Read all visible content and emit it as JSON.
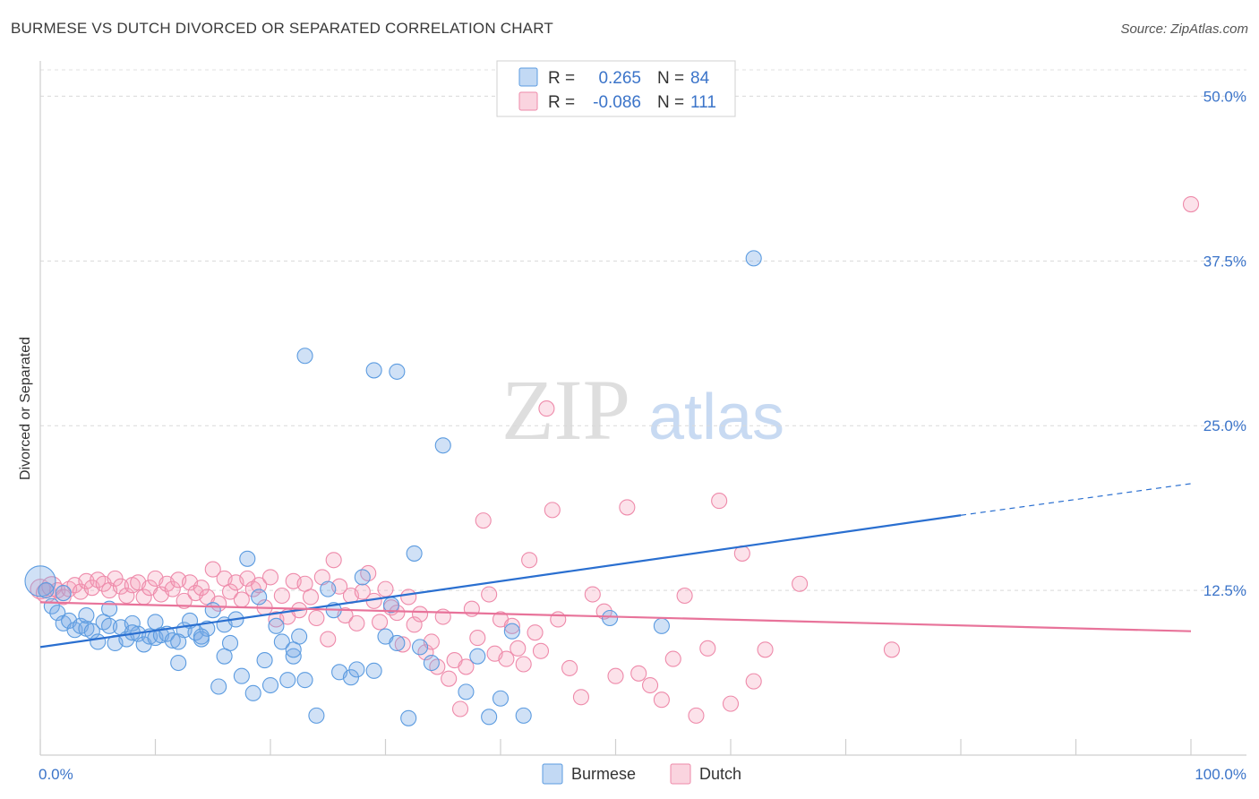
{
  "title": "BURMESE VS DUTCH DIVORCED OR SEPARATED CORRELATION CHART",
  "source": "Source: ZipAtlas.com",
  "watermark": {
    "zip": "ZIP",
    "atlas": "atlas"
  },
  "colors": {
    "burmese": "#5b9be0",
    "burmese_fill": "rgba(120,170,230,0.35)",
    "burmese_line": "#2a6fd0",
    "dutch": "#ee8aaa",
    "dutch_fill": "rgba(245,160,185,0.30)",
    "dutch_line": "#e8739a",
    "axis_label": "#3b74c9"
  },
  "legend": {
    "rows": [
      {
        "r_label": "R =",
        "r_value": "0.265",
        "n_label": "N =",
        "n_value": "84"
      },
      {
        "r_label": "R =",
        "r_value": "-0.086",
        "n_label": "N =",
        "n_value": "111"
      }
    ],
    "bottom": [
      "Burmese",
      "Dutch"
    ]
  },
  "chart_data": {
    "type": "scatter",
    "title": "BURMESE VS DUTCH DIVORCED OR SEPARATED CORRELATION CHART",
    "xlabel": "",
    "ylabel": "Divorced or Separated",
    "xlim": [
      0,
      100
    ],
    "ylim": [
      0,
      52
    ],
    "x_tick_labels": [
      "0.0%",
      "100.0%"
    ],
    "y_tick_labels": [
      "12.5%",
      "25.0%",
      "37.5%",
      "50.0%"
    ],
    "y_ticks": [
      12.5,
      25.0,
      37.5,
      50.0
    ],
    "grid": true,
    "series": [
      {
        "name": "Burmese",
        "r": 0.265,
        "n": 84,
        "trend": {
          "x0": 0,
          "y0": 8.2,
          "x1": 80,
          "y1": 18.2,
          "dashed_to_x": 100,
          "dashed_to_y": 20.6
        },
        "points": [
          [
            0,
            13.2
          ],
          [
            0.5,
            12.5
          ],
          [
            1,
            11.3
          ],
          [
            1.5,
            10.8
          ],
          [
            2,
            10.0
          ],
          [
            2.5,
            10.2
          ],
          [
            3,
            9.5
          ],
          [
            3.5,
            9.8
          ],
          [
            4,
            9.6
          ],
          [
            4.5,
            9.4
          ],
          [
            5,
            8.6
          ],
          [
            5.5,
            10.1
          ],
          [
            6,
            9.8
          ],
          [
            6.5,
            8.5
          ],
          [
            7,
            9.7
          ],
          [
            7.5,
            8.8
          ],
          [
            8,
            10.0
          ],
          [
            8.5,
            9.2
          ],
          [
            9,
            8.4
          ],
          [
            9.5,
            9.0
          ],
          [
            10,
            8.9
          ],
          [
            10.5,
            9.1
          ],
          [
            11,
            9.2
          ],
          [
            11.5,
            8.7
          ],
          [
            12,
            7.0
          ],
          [
            12.5,
            9.5
          ],
          [
            13,
            10.2
          ],
          [
            13.5,
            9.3
          ],
          [
            14,
            8.8
          ],
          [
            14.5,
            9.6
          ],
          [
            15,
            11.0
          ],
          [
            15.5,
            5.2
          ],
          [
            16,
            9.9
          ],
          [
            16.5,
            8.5
          ],
          [
            17,
            10.3
          ],
          [
            17.5,
            6.0
          ],
          [
            18,
            14.9
          ],
          [
            18.5,
            4.7
          ],
          [
            19,
            12.0
          ],
          [
            19.5,
            7.2
          ],
          [
            20,
            5.3
          ],
          [
            20.5,
            9.8
          ],
          [
            21,
            8.6
          ],
          [
            21.5,
            5.7
          ],
          [
            22,
            7.5
          ],
          [
            22.5,
            9.0
          ],
          [
            23,
            5.7
          ],
          [
            24,
            3.0
          ],
          [
            25,
            12.6
          ],
          [
            25.5,
            11.0
          ],
          [
            26,
            6.3
          ],
          [
            27,
            5.9
          ],
          [
            27.5,
            6.5
          ],
          [
            28,
            13.5
          ],
          [
            29,
            6.4
          ],
          [
            30,
            9.0
          ],
          [
            30.5,
            11.4
          ],
          [
            31,
            8.5
          ],
          [
            32,
            2.8
          ],
          [
            32.5,
            15.3
          ],
          [
            33,
            8.2
          ],
          [
            34,
            7.0
          ],
          [
            35,
            23.5
          ],
          [
            37,
            4.8
          ],
          [
            38,
            7.5
          ],
          [
            39,
            2.9
          ],
          [
            40,
            4.3
          ],
          [
            41,
            9.4
          ],
          [
            42,
            3.0
          ],
          [
            49.5,
            10.4
          ],
          [
            54,
            9.8
          ],
          [
            62,
            37.7
          ],
          [
            23,
            30.3
          ],
          [
            29,
            29.2
          ],
          [
            31,
            29.1
          ],
          [
            2,
            12.3
          ],
          [
            4,
            10.6
          ],
          [
            6,
            11.1
          ],
          [
            8,
            9.3
          ],
          [
            10,
            10.1
          ],
          [
            12,
            8.6
          ],
          [
            14,
            9.0
          ],
          [
            16,
            7.5
          ],
          [
            22,
            8.0
          ]
        ]
      },
      {
        "name": "Dutch",
        "r": -0.086,
        "n": 111,
        "trend": {
          "x0": 0,
          "y0": 11.6,
          "x1": 100,
          "y1": 9.4
        },
        "points": [
          [
            0,
            12.6
          ],
          [
            0.5,
            12.3
          ],
          [
            1,
            12.8
          ],
          [
            1.5,
            12.5
          ],
          [
            2,
            12.0
          ],
          [
            2.5,
            12.6
          ],
          [
            3,
            12.9
          ],
          [
            3.5,
            12.4
          ],
          [
            4,
            13.2
          ],
          [
            4.5,
            12.7
          ],
          [
            5,
            13.3
          ],
          [
            5.5,
            13.0
          ],
          [
            6,
            12.5
          ],
          [
            6.5,
            13.4
          ],
          [
            7,
            12.8
          ],
          [
            7.5,
            12.1
          ],
          [
            8,
            12.9
          ],
          [
            8.5,
            13.1
          ],
          [
            9,
            12.0
          ],
          [
            9.5,
            12.7
          ],
          [
            10,
            13.4
          ],
          [
            10.5,
            12.2
          ],
          [
            11,
            13.0
          ],
          [
            11.5,
            12.6
          ],
          [
            12,
            13.3
          ],
          [
            12.5,
            11.7
          ],
          [
            13,
            13.1
          ],
          [
            13.5,
            12.3
          ],
          [
            14,
            12.7
          ],
          [
            14.5,
            12.0
          ],
          [
            15,
            14.1
          ],
          [
            15.5,
            11.5
          ],
          [
            16,
            13.4
          ],
          [
            16.5,
            12.4
          ],
          [
            17,
            13.1
          ],
          [
            17.5,
            11.8
          ],
          [
            18,
            13.4
          ],
          [
            18.5,
            12.6
          ],
          [
            19,
            12.9
          ],
          [
            19.5,
            11.2
          ],
          [
            20,
            13.5
          ],
          [
            20.5,
            10.3
          ],
          [
            21,
            12.1
          ],
          [
            21.5,
            10.5
          ],
          [
            22,
            13.2
          ],
          [
            22.5,
            11.0
          ],
          [
            23,
            13.0
          ],
          [
            23.5,
            12.0
          ],
          [
            24,
            10.4
          ],
          [
            24.5,
            13.5
          ],
          [
            25,
            8.8
          ],
          [
            25.5,
            14.8
          ],
          [
            26,
            12.8
          ],
          [
            26.5,
            10.6
          ],
          [
            27,
            12.1
          ],
          [
            27.5,
            10.0
          ],
          [
            28,
            12.4
          ],
          [
            28.5,
            13.8
          ],
          [
            29,
            11.7
          ],
          [
            29.5,
            10.1
          ],
          [
            30,
            12.6
          ],
          [
            30.5,
            11.2
          ],
          [
            31,
            10.8
          ],
          [
            31.5,
            8.4
          ],
          [
            32,
            12.0
          ],
          [
            32.5,
            9.9
          ],
          [
            33,
            10.7
          ],
          [
            33.5,
            7.8
          ],
          [
            34,
            8.6
          ],
          [
            34.5,
            6.7
          ],
          [
            35,
            10.5
          ],
          [
            35.5,
            5.8
          ],
          [
            36,
            7.2
          ],
          [
            36.5,
            3.5
          ],
          [
            37,
            6.7
          ],
          [
            37.5,
            11.1
          ],
          [
            38,
            8.9
          ],
          [
            38.5,
            17.8
          ],
          [
            39,
            12.2
          ],
          [
            39.5,
            7.7
          ],
          [
            40,
            10.3
          ],
          [
            40.5,
            7.3
          ],
          [
            41,
            9.8
          ],
          [
            41.5,
            8.1
          ],
          [
            42,
            6.9
          ],
          [
            42.5,
            14.8
          ],
          [
            43,
            9.3
          ],
          [
            43.5,
            7.9
          ],
          [
            44,
            26.3
          ],
          [
            44.5,
            18.6
          ],
          [
            45,
            10.3
          ],
          [
            46,
            6.6
          ],
          [
            47,
            4.4
          ],
          [
            48,
            12.2
          ],
          [
            49,
            10.9
          ],
          [
            50,
            6.0
          ],
          [
            51,
            18.8
          ],
          [
            52,
            6.2
          ],
          [
            53,
            5.3
          ],
          [
            54,
            4.2
          ],
          [
            55,
            7.3
          ],
          [
            56,
            12.1
          ],
          [
            57,
            3.0
          ],
          [
            58,
            8.1
          ],
          [
            59,
            19.3
          ],
          [
            60,
            3.9
          ],
          [
            61,
            15.3
          ],
          [
            62,
            5.6
          ],
          [
            63,
            8.0
          ],
          [
            66,
            13.0
          ],
          [
            74,
            8.0
          ],
          [
            100,
            41.8
          ]
        ]
      }
    ]
  }
}
